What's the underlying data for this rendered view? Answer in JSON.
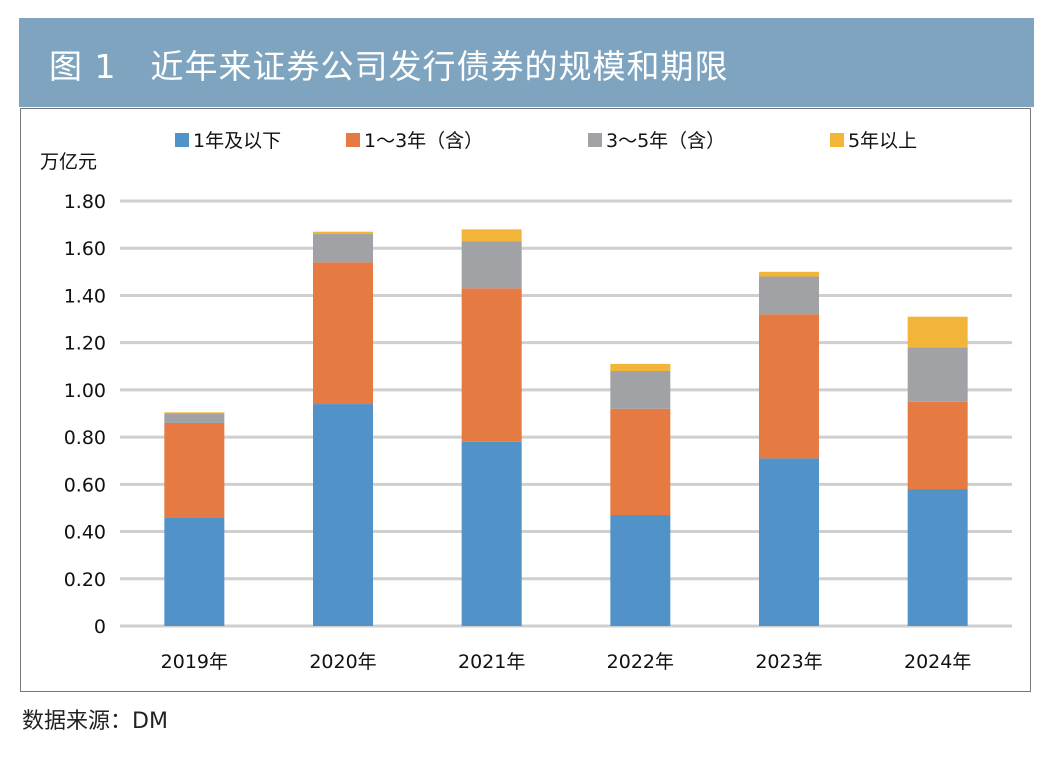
{
  "header": {
    "title": "图 1　近年来证券公司发行债券的规模和期限"
  },
  "source": "数据来源：DM",
  "chart_data": {
    "type": "bar",
    "stacked": true,
    "ylabel": "万亿元",
    "ylim": [
      0,
      1.8
    ],
    "yticks": [
      "0",
      "0.20",
      "0.40",
      "0.60",
      "0.80",
      "1.00",
      "1.20",
      "1.40",
      "1.60",
      "1.80"
    ],
    "grid": true,
    "legend_position": "top",
    "categories": [
      "2019年",
      "2020年",
      "2021年",
      "2022年",
      "2023年",
      "2024年"
    ],
    "series": [
      {
        "name": "1年及以下",
        "color": "#5193c8",
        "values": [
          0.46,
          0.94,
          0.78,
          0.47,
          0.71,
          0.58
        ]
      },
      {
        "name": "1～3年（含）",
        "color": "#e57a43",
        "values": [
          0.4,
          0.6,
          0.65,
          0.45,
          0.61,
          0.37
        ]
      },
      {
        "name": "3～5年（含）",
        "color": "#a0a2a5",
        "values": [
          0.04,
          0.12,
          0.2,
          0.16,
          0.16,
          0.23
        ]
      },
      {
        "name": "5年以上",
        "color": "#f2b53a",
        "values": [
          0.005,
          0.01,
          0.05,
          0.03,
          0.02,
          0.13
        ]
      }
    ]
  }
}
